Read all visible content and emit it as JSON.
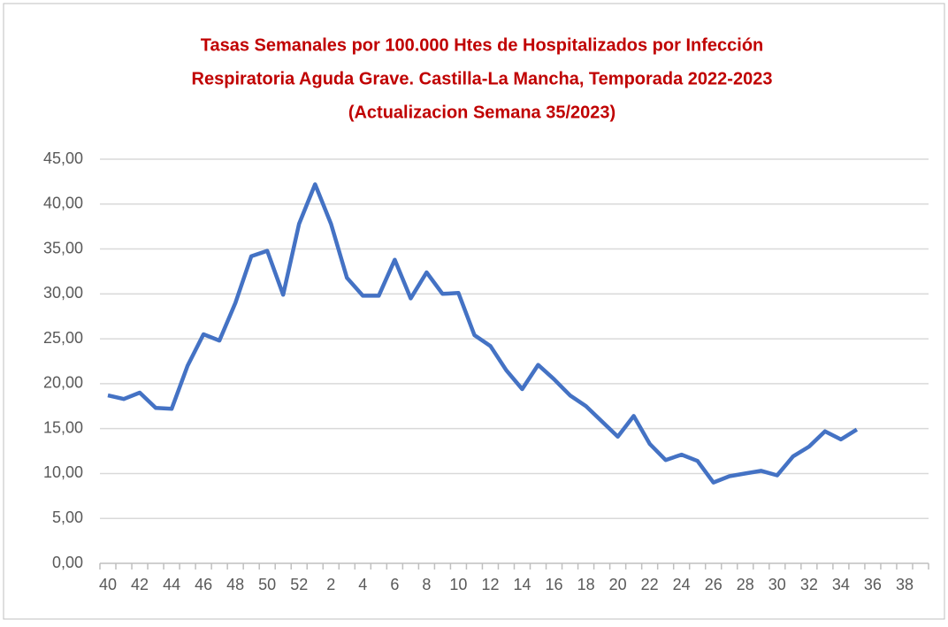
{
  "chart_data": {
    "type": "line",
    "title": [
      "Tasas Semanales por 100.000 Htes de Hospitalizados por Infección",
      "Respiratoria Aguda Grave. Castilla-La Mancha, Temporada 2022-2023",
      "(Actualizacion Semana 35/2023)"
    ],
    "categories": [
      "40",
      null,
      "42",
      null,
      "44",
      null,
      "46",
      null,
      "48",
      null,
      "50",
      null,
      "52",
      null,
      "2",
      null,
      "4",
      null,
      "6",
      null,
      "8",
      null,
      "10",
      null,
      "12",
      null,
      "14",
      null,
      "16",
      null,
      "18",
      null,
      "20",
      null,
      "22",
      null,
      "24",
      null,
      "26",
      null,
      "28",
      null,
      "30",
      null,
      "32",
      null,
      "34",
      null,
      "36",
      null,
      "38",
      null
    ],
    "values": [
      18.7,
      18.3,
      19.0,
      17.3,
      17.2,
      22.0,
      25.5,
      24.8,
      29.0,
      34.2,
      34.8,
      29.9,
      37.8,
      42.2,
      37.8,
      31.8,
      29.8,
      29.8,
      33.8,
      29.5,
      32.4,
      30.0,
      30.1,
      25.4,
      24.2,
      21.5,
      19.4,
      22.1,
      20.5,
      18.7,
      17.5,
      15.8,
      14.1,
      16.4,
      13.3,
      11.5,
      12.1,
      11.4,
      9.0,
      9.7,
      10.0,
      10.3,
      9.8,
      11.9,
      13.0,
      14.7,
      13.8,
      14.9,
      null,
      null,
      null,
      null
    ],
    "color": "#4472c4",
    "ylim": [
      0,
      45
    ],
    "yticks": [
      {
        "value": 0,
        "label": "0,00"
      },
      {
        "value": 5,
        "label": "5,00"
      },
      {
        "value": 10,
        "label": "10,00"
      },
      {
        "value": 15,
        "label": "15,00"
      },
      {
        "value": 20,
        "label": "20,00"
      },
      {
        "value": 25,
        "label": "25,00"
      },
      {
        "value": 30,
        "label": "30,00"
      },
      {
        "value": 35,
        "label": "35,00"
      },
      {
        "value": 40,
        "label": "40,00"
      },
      {
        "value": 45,
        "label": "45,00"
      }
    ],
    "grid": true
  }
}
